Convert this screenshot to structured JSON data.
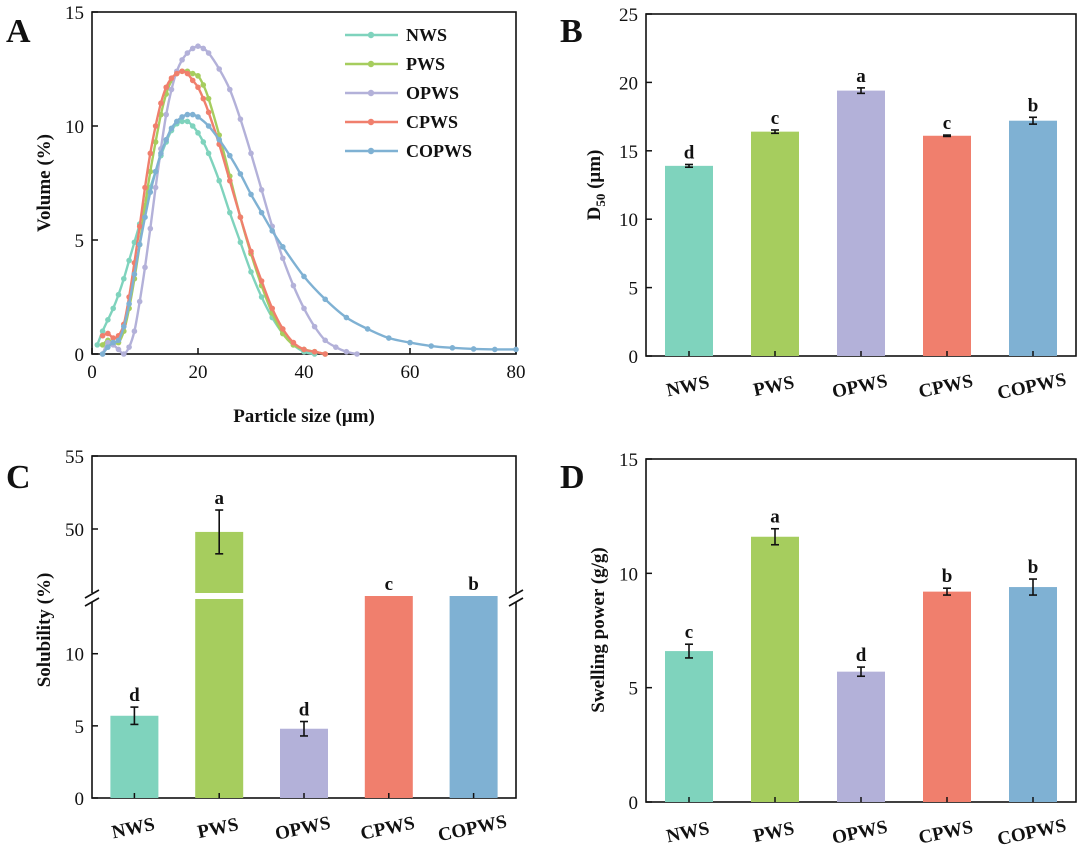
{
  "colors": {
    "NWS": "#7fd3bd",
    "PWS": "#a6cd5e",
    "OPWS": "#b3b1d9",
    "CPWS": "#f07f6d",
    "COPWS": "#7fb1d3"
  },
  "chart_data": [
    {
      "type": "line",
      "panel": "A",
      "xlabel": "Particle size (μm)",
      "ylabel": "Volume (%)",
      "xlim": [
        0,
        80
      ],
      "ylim": [
        0,
        15
      ],
      "xticks": [
        0,
        20,
        40,
        60,
        80
      ],
      "yticks": [
        0,
        5,
        10,
        15
      ],
      "legend": [
        "NWS",
        "PWS",
        "OPWS",
        "CPWS",
        "COPWS"
      ],
      "series": [
        {
          "name": "NWS",
          "x": [
            1,
            2,
            3,
            4,
            5,
            6,
            7,
            8,
            9,
            10,
            11,
            12,
            13,
            14,
            15,
            16,
            17,
            18,
            19,
            20,
            21,
            22,
            24,
            26,
            28,
            30,
            32,
            34,
            36,
            38,
            40,
            42
          ],
          "y": [
            0.4,
            1.0,
            1.5,
            2.0,
            2.6,
            3.3,
            4.1,
            4.9,
            5.7,
            6.5,
            7.3,
            8.0,
            8.7,
            9.3,
            9.8,
            10.1,
            10.2,
            10.2,
            10.0,
            9.7,
            9.3,
            8.8,
            7.6,
            6.2,
            4.9,
            3.6,
            2.5,
            1.6,
            0.9,
            0.4,
            0.1,
            0.0
          ]
        },
        {
          "name": "PWS",
          "x": [
            2,
            3,
            4,
            5,
            6,
            7,
            8,
            9,
            10,
            11,
            12,
            13,
            14,
            15,
            16,
            17,
            18,
            19,
            20,
            21,
            22,
            24,
            26,
            28,
            30,
            32,
            34,
            36,
            38,
            40,
            42,
            44
          ],
          "y": [
            0.4,
            0.6,
            0.5,
            0.5,
            1.0,
            2.0,
            3.3,
            4.8,
            6.5,
            8.0,
            9.3,
            10.5,
            11.4,
            12.0,
            12.3,
            12.4,
            12.4,
            12.3,
            12.2,
            11.8,
            11.2,
            9.6,
            7.8,
            6.0,
            4.4,
            3.0,
            1.8,
            0.9,
            0.4,
            0.2,
            0.1,
            0.0
          ]
        },
        {
          "name": "OPWS",
          "x": [
            2,
            3,
            4,
            5,
            6,
            7,
            8,
            9,
            10,
            11,
            12,
            13,
            14,
            15,
            16,
            17,
            18,
            19,
            20,
            21,
            22,
            24,
            26,
            28,
            30,
            32,
            34,
            36,
            38,
            40,
            42,
            44,
            46,
            48,
            50
          ],
          "y": [
            0.0,
            0.5,
            0.4,
            0.2,
            0.0,
            0.3,
            1.0,
            2.3,
            3.8,
            5.5,
            7.3,
            9.0,
            10.5,
            11.6,
            12.4,
            12.9,
            13.2,
            13.4,
            13.5,
            13.4,
            13.2,
            12.5,
            11.6,
            10.3,
            8.8,
            7.2,
            5.6,
            4.2,
            3.0,
            2.0,
            1.2,
            0.6,
            0.3,
            0.1,
            0.0
          ]
        },
        {
          "name": "CPWS",
          "x": [
            2,
            3,
            4,
            5,
            6,
            7,
            8,
            9,
            10,
            11,
            12,
            13,
            14,
            15,
            16,
            17,
            18,
            19,
            20,
            21,
            22,
            24,
            26,
            28,
            30,
            32,
            34,
            36,
            38,
            40,
            42,
            44
          ],
          "y": [
            0.8,
            0.9,
            0.7,
            0.8,
            1.3,
            2.5,
            4.0,
            5.6,
            7.3,
            8.8,
            10.0,
            11.0,
            11.7,
            12.1,
            12.3,
            12.4,
            12.3,
            12.0,
            11.7,
            11.2,
            10.6,
            9.2,
            7.6,
            6.0,
            4.5,
            3.2,
            2.0,
            1.1,
            0.5,
            0.2,
            0.1,
            0.0
          ]
        },
        {
          "name": "COPWS",
          "x": [
            2,
            3,
            4,
            5,
            6,
            7,
            8,
            9,
            10,
            11,
            12,
            13,
            14,
            15,
            16,
            17,
            18,
            19,
            20,
            22,
            24,
            26,
            28,
            30,
            32,
            34,
            36,
            40,
            44,
            48,
            52,
            56,
            60,
            64,
            68,
            72,
            76,
            80
          ],
          "y": [
            0.0,
            0.3,
            0.5,
            0.6,
            1.2,
            2.2,
            3.5,
            4.8,
            6.0,
            7.1,
            8.0,
            8.8,
            9.4,
            9.9,
            10.2,
            10.4,
            10.5,
            10.5,
            10.4,
            10.0,
            9.4,
            8.7,
            7.9,
            7.0,
            6.2,
            5.4,
            4.7,
            3.4,
            2.4,
            1.6,
            1.1,
            0.7,
            0.5,
            0.35,
            0.27,
            0.22,
            0.2,
            0.2
          ]
        }
      ]
    },
    {
      "type": "bar",
      "panel": "B",
      "ylabel": "D50 (μm)",
      "ylabel_main": "D",
      "ylabel_sub": "50",
      "ylabel_unit": " (μm)",
      "ylim": [
        0,
        25
      ],
      "yticks": [
        0,
        5,
        10,
        15,
        20,
        25
      ],
      "categories": [
        "NWS",
        "PWS",
        "OPWS",
        "CPWS",
        "COPWS"
      ],
      "values": [
        13.9,
        16.4,
        19.4,
        16.1,
        17.2
      ],
      "errors": [
        0.1,
        0.12,
        0.2,
        0.05,
        0.25
      ],
      "labels": [
        "d",
        "c",
        "a",
        "c",
        "b"
      ]
    },
    {
      "type": "bar",
      "panel": "C",
      "ylabel": "Solubility (%)",
      "broken_axis": true,
      "ylim_lower": [
        0,
        14
      ],
      "ylim_upper": [
        45,
        55
      ],
      "yticks_lower": [
        0,
        5,
        10
      ],
      "yticks_upper": [
        50,
        55
      ],
      "categories": [
        "NWS",
        "PWS",
        "OPWS",
        "CPWS",
        "COPWS"
      ],
      "values": [
        5.7,
        49.8,
        4.8,
        14,
        14
      ],
      "errors": [
        0.6,
        1.5,
        0.5,
        0,
        0
      ],
      "labels": [
        "d",
        "a",
        "d",
        "c",
        "b"
      ]
    },
    {
      "type": "bar",
      "panel": "D",
      "ylabel": "Swelling power (g/g)",
      "ylim": [
        0,
        15
      ],
      "yticks": [
        0,
        5,
        10,
        15
      ],
      "categories": [
        "NWS",
        "PWS",
        "OPWS",
        "CPWS",
        "COPWS"
      ],
      "values": [
        6.6,
        11.6,
        5.7,
        9.2,
        9.4
      ],
      "errors": [
        0.3,
        0.35,
        0.2,
        0.15,
        0.35
      ],
      "labels": [
        "c",
        "a",
        "d",
        "b",
        "b"
      ]
    }
  ]
}
